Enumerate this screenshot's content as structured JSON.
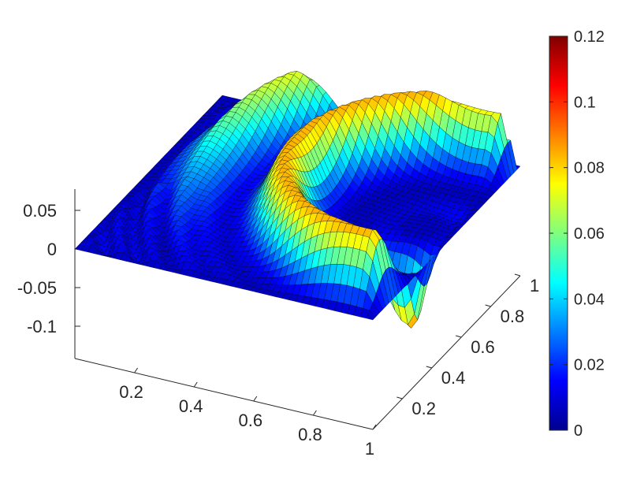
{
  "chart_data": {
    "type": "surface",
    "title": "",
    "xlabel": "",
    "ylabel": "",
    "zlabel": "",
    "xlim": [
      0,
      1
    ],
    "ylim": [
      0,
      1
    ],
    "zlim": [
      -0.15,
      0.08
    ],
    "x_ticks": [
      "0.2",
      "0.4",
      "0.6",
      "0.8",
      "1"
    ],
    "y_ticks": [
      "0.2",
      "0.4",
      "0.6",
      "0.8",
      "1"
    ],
    "z_ticks": [
      "0.05",
      "0",
      "-0.05",
      "-0.1"
    ],
    "colorbar": {
      "colormap": "jet",
      "range": [
        0,
        0.12
      ],
      "ticks": [
        "0",
        "0.02",
        "0.04",
        "0.06",
        "0.08",
        "0.1",
        "0.12"
      ]
    },
    "surface_features": [
      {
        "kind": "ridge",
        "peak_z": 0.085
      },
      {
        "kind": "ridge",
        "peak_z": 0.07
      },
      {
        "kind": "trough",
        "min_z": -0.11
      }
    ],
    "grid": false,
    "box": false,
    "edge_color": "#000000"
  }
}
